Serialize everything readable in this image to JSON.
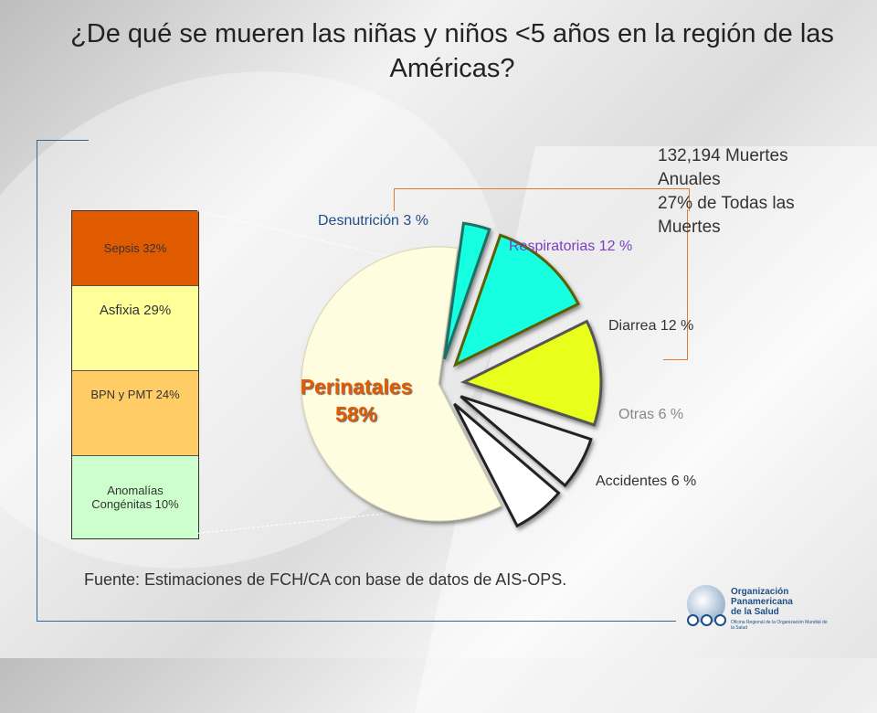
{
  "title": "¿De qué se mueren las niñas y niños <5 años  en la región de las Américas?",
  "callout": [
    "132,194 Muertes",
    "Anuales",
    "27% de Todas las",
    "Muertes"
  ],
  "source": "Fuente: Estimaciones de FCH/CA  con base de datos de AIS-OPS.",
  "logo": {
    "lines": [
      "Organización",
      "Panamericana",
      "de la Salud"
    ],
    "subtitle": "Oficina Regional de la Organización Mundial de la Salud"
  },
  "colors": {
    "perinatal": "#fffde0",
    "respiratorias": "#17ffe0",
    "diarrea": "#e8ff1a",
    "otras": "#f3f3f3",
    "accidentes": "#ffffff",
    "perinatal_label": "#e55a00",
    "sepsis": "#e05a00",
    "asfixia": "#ffff99",
    "bpn": "#ffcc66",
    "anomalias": "#ccffcc",
    "bracket": "#e07a2e"
  },
  "chart_data": [
    {
      "type": "pie",
      "title": "",
      "slices": [
        {
          "label": "Perinatales",
          "value": 58,
          "display": "Perinatales\n58%",
          "color": "perinatal",
          "text_color": "#e55a00"
        },
        {
          "label": "Desnutrición",
          "value": 3,
          "display": "Desnutrición 3 %",
          "color": "respiratorias",
          "text_color": "#1f4e8c"
        },
        {
          "label": "Respiratorias",
          "value": 12,
          "display": "Respiratorias 12 %",
          "color": "respiratorias",
          "text_color": "#7a3fc4"
        },
        {
          "label": "Diarrea",
          "value": 12,
          "display": "Diarrea 12 %",
          "color": "diarrea",
          "text_color": "#333333"
        },
        {
          "label": "Otras",
          "value": 6,
          "display": "Otras 6 %",
          "color": "otras",
          "text_color": "#888888"
        },
        {
          "label": "Accidentes",
          "value": 6,
          "display": "Accidentes 6 %",
          "color": "accidentes",
          "text_color": "#333333"
        }
      ]
    },
    {
      "type": "bar",
      "stacked": true,
      "categories": [
        "Perinatales"
      ],
      "series": [
        {
          "label": "Sepsis 32%",
          "value": 32,
          "color": "sepsis"
        },
        {
          "label": "Asfixia 29%",
          "value": 29,
          "color": "asfixia"
        },
        {
          "label": "BPN y PMT 24%",
          "value": 24,
          "color": "bpn"
        },
        {
          "label": "Anomalías Congénitas 10%",
          "value": 10,
          "color": "anomalias"
        }
      ]
    }
  ]
}
